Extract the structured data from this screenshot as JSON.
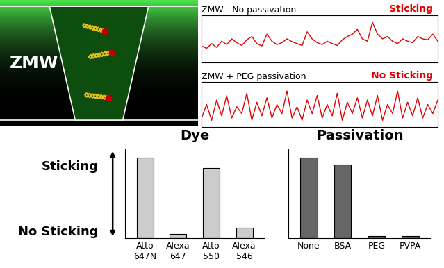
{
  "illustration": {
    "label": "ZMW"
  },
  "chart_data": [
    {
      "type": "line",
      "title": "ZMW - No passivation",
      "annotation": "Sticking",
      "color": "#e00000",
      "values": [
        0.35,
        0.3,
        0.4,
        0.32,
        0.45,
        0.38,
        0.5,
        0.42,
        0.36,
        0.48,
        0.55,
        0.4,
        0.35,
        0.6,
        0.45,
        0.38,
        0.42,
        0.5,
        0.44,
        0.4,
        0.36,
        0.65,
        0.5,
        0.42,
        0.38,
        0.45,
        0.4,
        0.36,
        0.48,
        0.55,
        0.6,
        0.7,
        0.5,
        0.45,
        0.85,
        0.6,
        0.5,
        0.55,
        0.45,
        0.4,
        0.5,
        0.45,
        0.42,
        0.55,
        0.5,
        0.48,
        0.6,
        0.45
      ],
      "xlim": [
        0,
        47
      ],
      "ylim": [
        0,
        1
      ],
      "xticks": [],
      "yticks": [],
      "tick_labels": false
    },
    {
      "type": "line",
      "title": "ZMW + PEG passivation",
      "annotation": "No Sticking",
      "color": "#e00000",
      "values": [
        0.2,
        0.5,
        0.15,
        0.6,
        0.25,
        0.7,
        0.2,
        0.45,
        0.3,
        0.75,
        0.15,
        0.55,
        0.25,
        0.65,
        0.2,
        0.5,
        0.3,
        0.8,
        0.2,
        0.45,
        0.15,
        0.6,
        0.3,
        0.7,
        0.2,
        0.5,
        0.25,
        0.75,
        0.15,
        0.55,
        0.3,
        0.65,
        0.2,
        0.6,
        0.25,
        0.7,
        0.15,
        0.5,
        0.3,
        0.8,
        0.2,
        0.55,
        0.25,
        0.65,
        0.2,
        0.5,
        0.3,
        0.6
      ],
      "xlim": [
        0,
        47
      ],
      "ylim": [
        0,
        1
      ],
      "xticks": [],
      "yticks": [],
      "tick_labels": false
    },
    {
      "type": "bar",
      "title": "Dye",
      "categories": [
        "Atto\n647N",
        "Alexa\n647",
        "Atto\n550",
        "Alexa\n546"
      ],
      "values": [
        1.0,
        0.05,
        0.87,
        0.13
      ],
      "color": "#cccccc",
      "ylim": [
        0,
        1.1
      ],
      "yticks": [
        {
          "value": 0.1,
          "label": "No Sticking"
        },
        {
          "value": 0.9,
          "label": "Sticking"
        }
      ]
    },
    {
      "type": "bar",
      "title": "Passivation",
      "categories": [
        "None",
        "BSA",
        "PEG",
        "PVPA"
      ],
      "values": [
        1.0,
        0.91,
        0.03,
        0.03
      ],
      "color": "#666666",
      "ylim": [
        0,
        1.1
      ],
      "yticks": [
        {
          "value": 0.1,
          "label": "No Sticking"
        },
        {
          "value": 0.9,
          "label": "Sticking"
        }
      ],
      "tick_labels": "x"
    }
  ]
}
